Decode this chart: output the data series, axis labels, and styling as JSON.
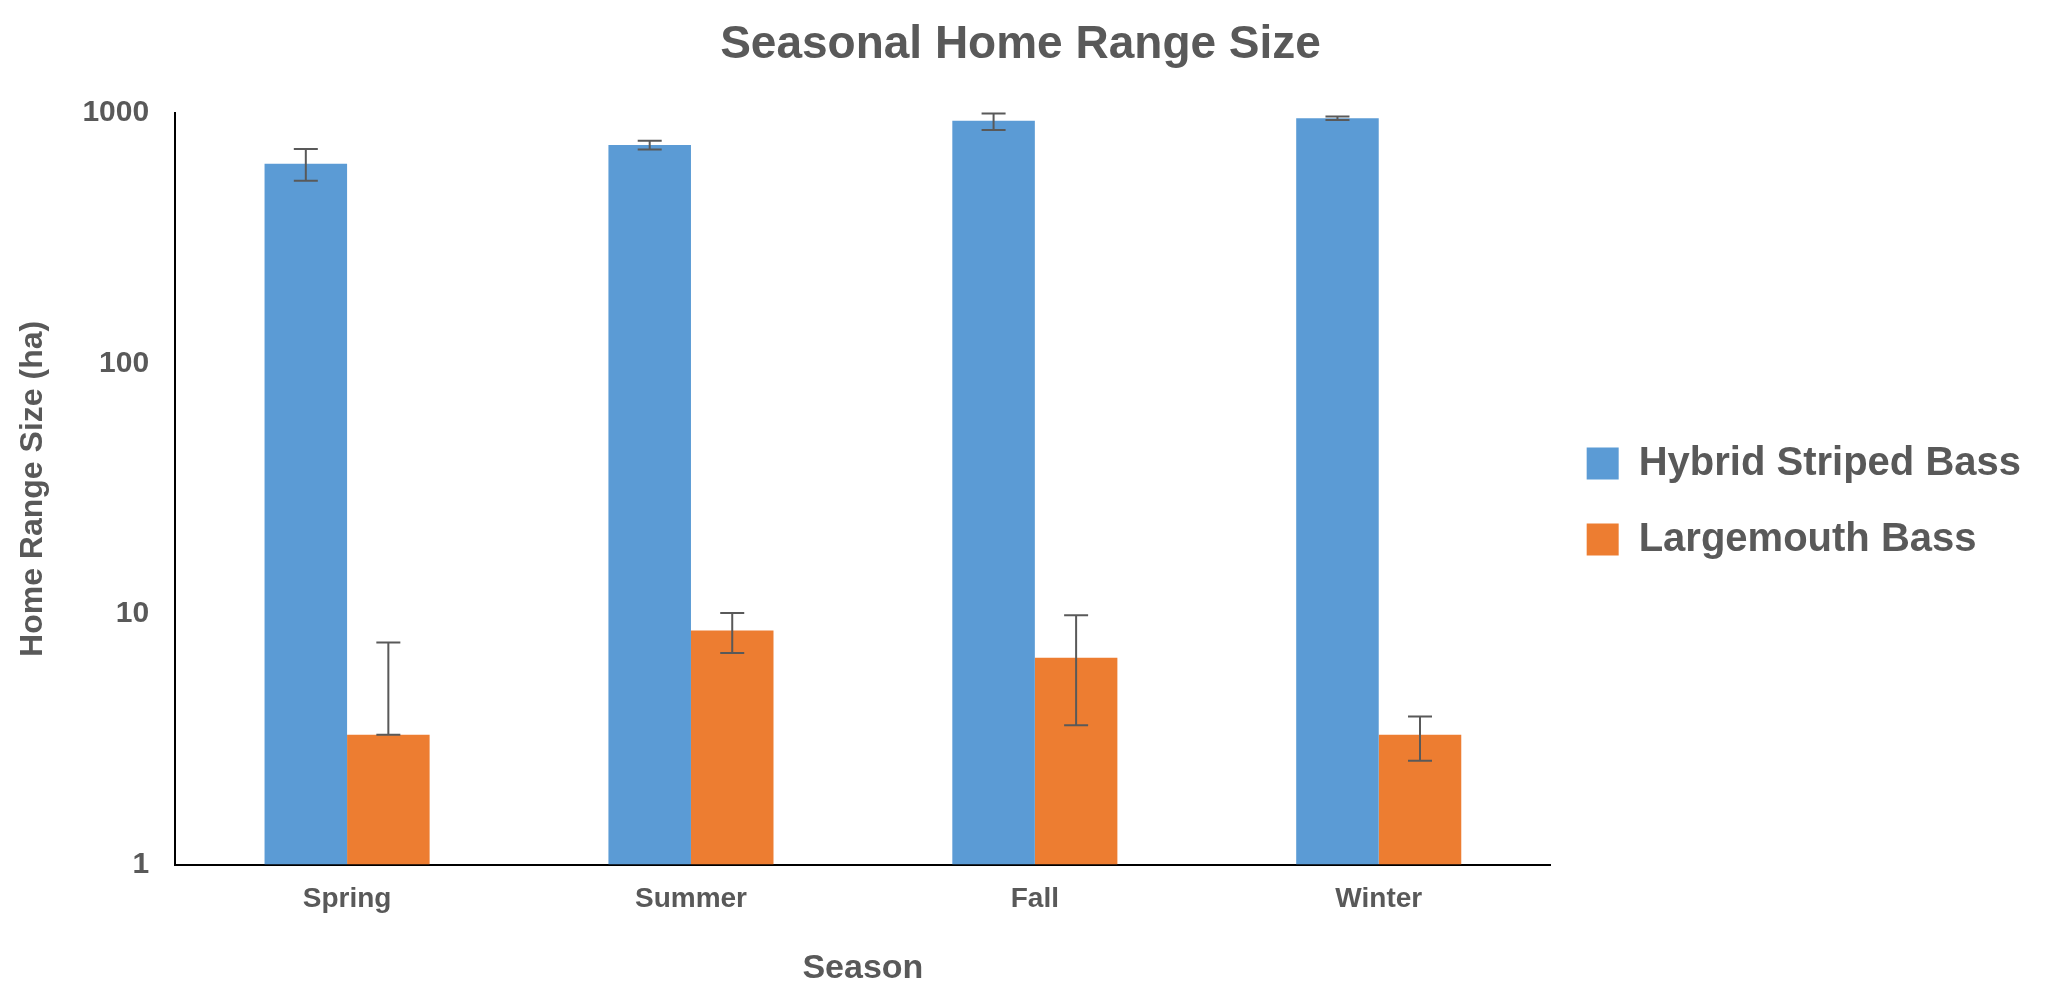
{
  "chart_data": {
    "type": "bar",
    "title": "Seasonal Home Range Size",
    "xlabel": "Season",
    "ylabel": "Home Range Size (ha)",
    "categories": [
      "Spring",
      "Summer",
      "Fall",
      "Winter"
    ],
    "series": [
      {
        "name": "Hybrid Striped Bass",
        "color": "#5b9bd5",
        "values": [
          628,
          747,
          932,
          954
        ],
        "errors": [
          [
            538,
            720
          ],
          [
            716,
            776
          ],
          [
            857,
            998
          ],
          [
            940,
            970
          ]
        ]
      },
      {
        "name": "Largemouth Bass",
        "color": "#ed7d31",
        "values": [
          3.3,
          8.6,
          6.7,
          3.3
        ],
        "errors": [
          [
            3.3,
            7.7
          ],
          [
            7.0,
            10.1
          ],
          [
            3.6,
            9.9
          ],
          [
            2.6,
            3.9
          ]
        ]
      }
    ],
    "log": "y",
    "ylim": [
      1,
      1000
    ],
    "yticks": [
      1,
      10,
      100,
      1000
    ],
    "grid": false,
    "legend": "right"
  }
}
